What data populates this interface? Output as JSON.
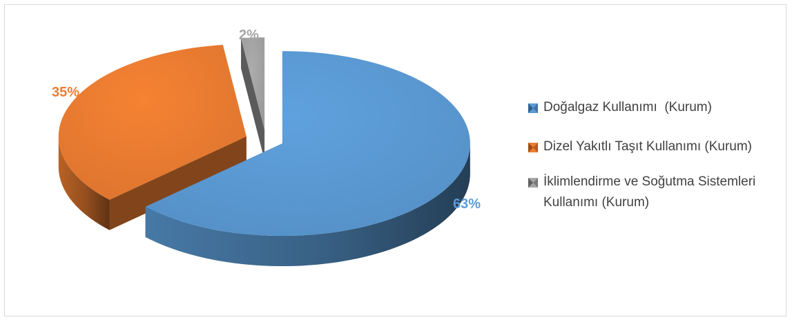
{
  "chart_data": {
    "type": "pie",
    "style": "3d-exploded",
    "slices": [
      {
        "name": "Doğalgaz Kullanımı  (Kurum)",
        "value": 63,
        "label": "63%",
        "color": "#5b9bd5"
      },
      {
        "name": "Dizel Yakıtlı Taşıt Kullanımı (Kurum)",
        "value": 35,
        "label": "35%",
        "color": "#ed7d31"
      },
      {
        "name": "İklimlendirme ve Soğutma Sistemleri Kullanımı (Kurum)",
        "value": 2,
        "label": "2%",
        "color": "#a5a5a5"
      }
    ],
    "legend_position": "right"
  },
  "legend": {
    "items": [
      {
        "label": "Doğalgaz Kullanımı  (Kurum)",
        "color": "#5b9bd5"
      },
      {
        "label": "Dizel Yakıtlı Taşıt Kullanımı (Kurum)",
        "color": "#ed7d31"
      },
      {
        "label": "İklimlendirme ve Soğutma Sistemleri Kullanımı (Kurum)",
        "color": "#a5a5a5"
      }
    ]
  },
  "labels": {
    "s0": "63%",
    "s1": "35%",
    "s2": "2%"
  }
}
